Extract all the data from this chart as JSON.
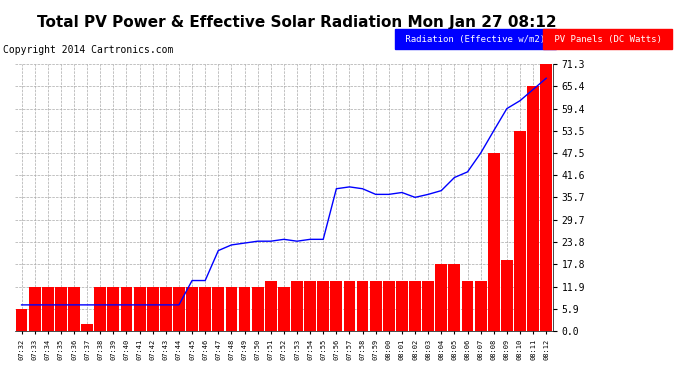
{
  "title": "Total PV Power & Effective Solar Radiation Mon Jan 27 08:12",
  "copyright": "Copyright 2014 Cartronics.com",
  "legend_radiation": "Radiation (Effective w/m2)",
  "legend_pv": "PV Panels (DC Watts)",
  "times": [
    "07:32",
    "07:33",
    "07:34",
    "07:35",
    "07:36",
    "07:37",
    "07:38",
    "07:39",
    "07:40",
    "07:41",
    "07:42",
    "07:43",
    "07:44",
    "07:45",
    "07:46",
    "07:47",
    "07:48",
    "07:49",
    "07:50",
    "07:51",
    "07:52",
    "07:53",
    "07:54",
    "07:55",
    "07:56",
    "07:57",
    "07:58",
    "07:59",
    "08:00",
    "08:01",
    "08:02",
    "08:03",
    "08:04",
    "08:05",
    "08:06",
    "08:07",
    "08:08",
    "08:09",
    "08:10",
    "08:11",
    "08:12"
  ],
  "bar_values": [
    5.9,
    11.9,
    11.9,
    11.9,
    11.9,
    2.0,
    11.9,
    11.9,
    11.9,
    11.9,
    11.9,
    11.9,
    11.9,
    11.9,
    11.9,
    11.9,
    11.9,
    11.9,
    11.9,
    13.5,
    11.9,
    13.5,
    13.5,
    13.5,
    13.5,
    13.5,
    13.5,
    13.5,
    13.5,
    13.5,
    13.5,
    13.5,
    17.8,
    17.8,
    13.5,
    13.5,
    47.5,
    19.0,
    53.5,
    65.4,
    71.3
  ],
  "line_values": [
    7.0,
    7.0,
    7.0,
    7.0,
    7.0,
    7.0,
    7.0,
    7.0,
    7.0,
    7.0,
    7.0,
    7.0,
    7.0,
    13.5,
    13.5,
    21.5,
    23.0,
    23.5,
    24.0,
    24.0,
    24.5,
    24.0,
    24.5,
    24.5,
    38.0,
    38.5,
    38.0,
    36.5,
    36.5,
    37.0,
    35.7,
    36.5,
    37.5,
    41.0,
    42.5,
    47.5,
    53.5,
    59.4,
    61.5,
    64.5,
    67.5
  ],
  "y_ticks": [
    0.0,
    5.9,
    11.9,
    17.8,
    23.8,
    29.7,
    35.7,
    41.6,
    47.5,
    53.5,
    59.4,
    65.4,
    71.3
  ],
  "ymax": 71.3,
  "bar_color": "#ff0000",
  "line_color": "#0000ff",
  "bg_color": "#ffffff",
  "grid_color": "#aaaaaa",
  "title_fontsize": 11,
  "copyright_fontsize": 7,
  "tick_fontsize": 7,
  "xtick_fontsize": 5,
  "legend_bg_radiation": "#0000ff",
  "legend_bg_pv": "#ff0000",
  "legend_text_color": "#ffffff",
  "legend_fontsize": 6.5
}
